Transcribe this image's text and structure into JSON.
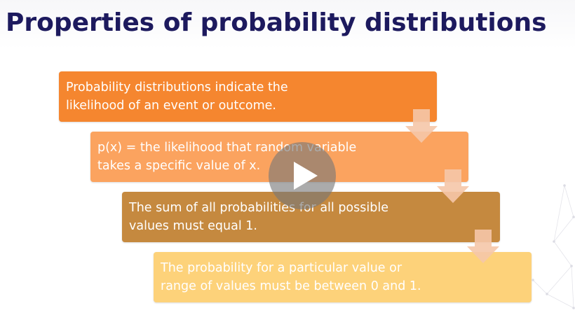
{
  "slide": {
    "title": "Properties of probability distributions",
    "steps": [
      {
        "text": "Probability distributions indicate the\nlikelihood of an event or outcome."
      },
      {
        "text": "p(x) = the likelihood that random variable\ntakes a specific value of x."
      },
      {
        "text": "The sum of all probabilities for all possible\nvalues must equal 1."
      },
      {
        "text": "The probability for a particular value or\nrange of values must be between 0 and 1."
      }
    ]
  },
  "colors": {
    "title": "#1d1a5e",
    "step_1": "#f5862f",
    "step_2": "#fba35f",
    "step_3": "#c5893f",
    "step_4": "#fdd27a",
    "arrow": "#f5c6a8"
  },
  "video": {
    "play_icon": "play-icon"
  },
  "icons": [
    "down-arrow-icon",
    "play-icon"
  ]
}
